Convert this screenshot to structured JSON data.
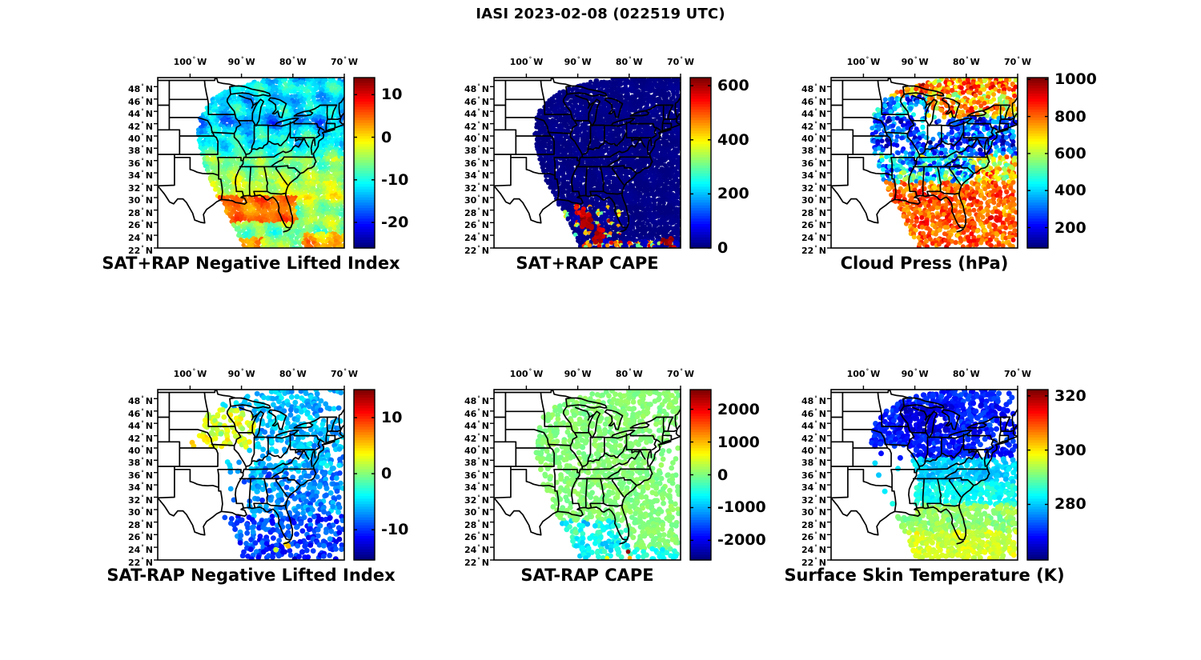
{
  "figure_title": "IASI 2023-02-08 (022519 UTC)",
  "colors": {
    "background": "#ffffff",
    "text": "#000000",
    "map_outline": "#000000",
    "colormap_low": "#00008f",
    "colormap_high": "#7f0000"
  },
  "map_axes": {
    "degree_symbol": "°",
    "lon_ticks": [
      {
        "label": "100",
        "hemisphere": "W"
      },
      {
        "label": "90",
        "hemisphere": "W"
      },
      {
        "label": "80",
        "hemisphere": "W"
      },
      {
        "label": "70",
        "hemisphere": "W"
      }
    ],
    "lat_ticks": [
      {
        "label": "48",
        "hemisphere": "N"
      },
      {
        "label": "46",
        "hemisphere": "N"
      },
      {
        "label": "44",
        "hemisphere": "N"
      },
      {
        "label": "42",
        "hemisphere": "N"
      },
      {
        "label": "40",
        "hemisphere": "N"
      },
      {
        "label": "38",
        "hemisphere": "N"
      },
      {
        "label": "36",
        "hemisphere": "N"
      },
      {
        "label": "34",
        "hemisphere": "N"
      },
      {
        "label": "32",
        "hemisphere": "N"
      },
      {
        "label": "30",
        "hemisphere": "N"
      },
      {
        "label": "28",
        "hemisphere": "N"
      },
      {
        "label": "26",
        "hemisphere": "N"
      },
      {
        "label": "24",
        "hemisphere": "N"
      },
      {
        "label": "22",
        "hemisphere": "N"
      }
    ]
  },
  "swath_polygon_lonlat": [
    [
      -89.4,
      22
    ],
    [
      -92.5,
      27
    ],
    [
      -94.6,
      30
    ],
    [
      -96.3,
      33
    ],
    [
      -97.5,
      36
    ],
    [
      -98.3,
      39
    ],
    [
      -98.5,
      41
    ],
    [
      -98.0,
      43.5
    ],
    [
      -96.5,
      45.5
    ],
    [
      -93.5,
      47.2
    ],
    [
      -90.0,
      48.3
    ],
    [
      -86.0,
      49.1
    ],
    [
      -82.0,
      49.45
    ],
    [
      -70.0,
      49.45
    ],
    [
      -70.0,
      22
    ]
  ],
  "chart_data": [
    {
      "id": "sat-plus-rap-nli",
      "title": "SAT+RAP Negative Lifted Index",
      "type": "map-filled-swath",
      "colormap": "jet",
      "colorbar": {
        "vmin": -26,
        "vmax": 14,
        "ticks": [
          10,
          0,
          -10,
          -20
        ]
      },
      "lon_ticks_deg": [
        -100,
        -90,
        -80,
        -70
      ],
      "lat_ticks_deg": [
        48,
        46,
        44,
        42,
        40,
        38,
        36,
        34,
        32,
        30,
        28,
        26,
        24,
        22
      ],
      "lon_range": [
        -106.3,
        -70
      ],
      "lat_range": [
        22,
        49.45
      ],
      "render": {
        "mode": "fill",
        "step": 3,
        "dot_r": 2.7,
        "coverage": 1,
        "seed": 11
      },
      "data_regions": [
        {
          "lat": [
            26,
            30.2
          ],
          "lon": [
            -94.5,
            -79.3
          ],
          "mean": 4.5,
          "sd": 2.2
        },
        {
          "lat": [
            22,
            24.3
          ],
          "lon": [
            -78,
            -70
          ],
          "mean": 1.5,
          "sd": 2.8
        },
        {
          "lat": [
            22,
            23.6
          ],
          "lon": [
            -94,
            -86
          ],
          "mean": 3,
          "sd": 2.5
        },
        {
          "lat": [
            22,
            26
          ],
          "mean": -6,
          "sd": 3.2
        },
        {
          "lat": [
            26,
            29.5
          ],
          "mean": -5,
          "sd": 2.8
        },
        {
          "lat": [
            29.5,
            32.5
          ],
          "mean": -2.5,
          "sd": 2.6
        },
        {
          "lat": [
            32.5,
            36.5
          ],
          "mean": -5.5,
          "sd": 2.8
        },
        {
          "lat": [
            36.5,
            40
          ],
          "mean": -10,
          "sd": 3.2
        },
        {
          "lat": [
            40,
            44.5
          ],
          "mean": -13.5,
          "sd": 3.8
        },
        {
          "lat": [
            44.5,
            50
          ],
          "mean": -12,
          "sd": 3.2
        },
        {
          "mean": -8,
          "sd": 3
        }
      ],
      "extra_points": [],
      "gaps": [],
      "description": "Filled retrieval swath: cyan/blue (-10 to -20) over Midwest, Great Lakes and Northeast; green-yellow (-5 to 0) across the South; orange (+2 to +7) over the Gulf of Mexico coast and far bottom-right streaks; cyan near 22N."
    },
    {
      "id": "sat-plus-rap-cape",
      "title": "SAT+RAP CAPE",
      "type": "map-filled-swath",
      "colormap": "jet",
      "colorbar": {
        "vmin": 0,
        "vmax": 630,
        "ticks": [
          600,
          400,
          200,
          0
        ]
      },
      "lon_ticks_deg": [
        -100,
        -90,
        -80,
        -70
      ],
      "lat_ticks_deg": [
        48,
        46,
        44,
        42,
        40,
        38,
        36,
        34,
        32,
        30,
        28,
        26,
        24,
        22
      ],
      "lon_range": [
        -106.3,
        -70
      ],
      "lat_range": [
        22,
        49.45
      ],
      "render": {
        "mode": "fill",
        "step": 3,
        "dot_r": 2.7,
        "coverage": 1,
        "seed": 22
      },
      "data_regions": [
        {
          "lat": [
            23.2,
            28.6
          ],
          "lon": [
            -92.5,
            -81.5
          ],
          "mean": 12,
          "sd": 18,
          "hi_mean": 430,
          "hi_sd": 190,
          "hi_prob": 0.36
        },
        {
          "lat": [
            22,
            23.2
          ],
          "lon": [
            -89,
            -70
          ],
          "mean": 20,
          "sd": 25,
          "hi_mean": 430,
          "hi_sd": 190,
          "hi_prob": 0.45
        },
        {
          "mean": 5,
          "sd": 6
        }
      ],
      "extra_points": [
        {
          "lon": -88.3,
          "lat": 26.2,
          "v": 600,
          "r": 3.2,
          "n": 24,
          "spread": 1.1
        },
        {
          "lon": -89.6,
          "lat": 27.9,
          "v": 560,
          "r": 3,
          "n": 10,
          "spread": 0.8
        },
        {
          "lon": -85.9,
          "lat": 23.9,
          "v": 590,
          "r": 3.2,
          "n": 14,
          "spread": 1.0
        },
        {
          "lon": -72.3,
          "lat": 22.6,
          "v": 600,
          "r": 3,
          "n": 10,
          "spread": 1.2
        }
      ],
      "gaps": [],
      "description": "Swath almost entirely ~0 J/kg (dark blue); strong CAPE cells (400-630, red/dark-red with yellow-cyan fringes) over the southern Gulf of Mexico near 22-28N and along the bottom edge toward the right corner."
    },
    {
      "id": "cloud-press",
      "title": "Cloud Press (hPa)",
      "type": "map-scatter",
      "units": "hPa",
      "colormap": "jet",
      "colorbar": {
        "vmin": 90,
        "vmax": 1010,
        "ticks": [
          1000,
          800,
          600,
          400,
          200
        ]
      },
      "lon_ticks_deg": [
        -100,
        -90,
        -80,
        -70
      ],
      "lat_ticks_deg": [
        48,
        46,
        44,
        42,
        40,
        38,
        36,
        34,
        32,
        30,
        28,
        26,
        24,
        22
      ],
      "lon_range": [
        -106.3,
        -70
      ],
      "lat_range": [
        22,
        49.45
      ],
      "render": {
        "mode": "dots",
        "step": 4,
        "dot_r": 3.0,
        "coverage": 0.85,
        "seed": 33
      },
      "data_regions": [
        {
          "lat": [
            22,
            32.5
          ],
          "mean": 810,
          "sd": 85
        },
        {
          "lat": [
            32.5,
            36.8
          ],
          "lon": [
            -78.5,
            -70
          ],
          "mean": 690,
          "sd": 170
        },
        {
          "lat": [
            32.5,
            36.8
          ],
          "mean": 380,
          "sd": 210
        },
        {
          "lat": [
            36.8,
            43
          ],
          "mean": 280,
          "sd": 150
        },
        {
          "lat": [
            46.5,
            49.5
          ],
          "mean": 750,
          "sd": 160
        },
        {
          "lat": [
            43,
            46.5
          ],
          "lon": [
            -87.5,
            -70
          ],
          "mean": 730,
          "sd": 180
        },
        {
          "lat": [
            43,
            46.5
          ],
          "mean": 330,
          "sd": 150
        },
        {
          "mean": 500,
          "sd": 200
        }
      ],
      "extra_points": [],
      "gaps": [
        {
          "lon": [
            -90.5,
            -86
          ],
          "lat": [
            41.5,
            44.5
          ],
          "keep": 0.25
        },
        {
          "lon": [
            -89,
            -85.5
          ],
          "lat": [
            38.5,
            41
          ],
          "keep": 0.35
        },
        {
          "lon": [
            -87,
            -83.5
          ],
          "lat": [
            40.5,
            43.5
          ],
          "keep": 0.3
        },
        {
          "lon": [
            -96,
            -91
          ],
          "lat": [
            36.5,
            39.5
          ],
          "keep": 0.45
        }
      ],
      "description": "Scattered cloud-top pressure dots: high pressure 700-900 hPa (orange) south of ~32N and over the Northeast/Ontario; low 200-400 hPa (blue) band over the Midwest and Ohio valley; mixed cyan/orange 400-700 in between with cloud-free white holes."
    },
    {
      "id": "sat-minus-rap-nli",
      "title": "SAT-RAP Negative Lifted Index",
      "type": "map-scatter",
      "colormap": "jet",
      "colorbar": {
        "vmin": -15.4,
        "vmax": 15,
        "ticks": [
          10,
          0,
          -10
        ]
      },
      "lon_ticks_deg": [
        -100,
        -90,
        -80,
        -70
      ],
      "lat_ticks_deg": [
        48,
        46,
        44,
        42,
        40,
        38,
        36,
        34,
        32,
        30,
        28,
        26,
        24,
        22
      ],
      "lon_range": [
        -106.3,
        -70
      ],
      "lat_range": [
        22,
        49.45
      ],
      "render": {
        "mode": "dots",
        "step": 4,
        "dot_r": 3.4,
        "coverage": 0.5,
        "seed": 44
      },
      "data_regions": [
        {
          "lat": [
            40,
            46.3
          ],
          "lon": [
            -101,
            -87.5
          ],
          "mean": 2.5,
          "sd": 2.2
        },
        {
          "lat": [
            41,
            48.8
          ],
          "lon": [
            -87.5,
            -70
          ],
          "mean": -6,
          "sd": 2.0
        },
        {
          "lat": [
            36,
            41
          ],
          "mean": -6.5,
          "sd": 2.4
        },
        {
          "lat": [
            29,
            36
          ],
          "mean": -7.5,
          "sd": 2.4
        },
        {
          "lat": [
            24,
            29
          ],
          "mean": -9.5,
          "sd": 2.6
        },
        {
          "lat": [
            22,
            24
          ],
          "mean": -11,
          "sd": 2.4
        },
        {
          "mean": -6,
          "sd": 2
        }
      ],
      "extra_points": [
        {
          "lon": -81.3,
          "lat": 24.5,
          "v": 4,
          "r": 3.4
        },
        {
          "lon": -80.9,
          "lat": 24.2,
          "v": 6,
          "r": 3.4
        },
        {
          "lon": -83.3,
          "lat": 23.6,
          "v": 2,
          "r": 3.4
        },
        {
          "lon": -99.6,
          "lat": 40.9,
          "v": 6,
          "r": 3.4
        },
        {
          "lon": -99.3,
          "lat": 40.3,
          "v": 5,
          "r": 3.4
        }
      ],
      "gaps": [
        {
          "lon": [
            -99,
            -88.5
          ],
          "lat": [
            29,
            40
          ],
          "keep": 0.07
        },
        {
          "lon": [
            -88.5,
            -82
          ],
          "lat": [
            37.5,
            40.5
          ],
          "keep": 0.35
        },
        {
          "lon": [
            -75,
            -70
          ],
          "lat": [
            44.5,
            49.5
          ],
          "keep": 0.3
        }
      ],
      "description": "Difference dots: yellow-green cluster (+1 to +5) over Nebraska/Iowa/Minnesota/Wisconsin; cyan (-4 to -8) over the Great Lakes, Northeast and Southeast; deeper blue (-8 to -13) over Florida and the Gulf with a few orange specks near the Florida Keys."
    },
    {
      "id": "sat-minus-rap-cape",
      "title": "SAT-RAP CAPE",
      "type": "map-scatter",
      "colormap": "jet",
      "colorbar": {
        "vmin": -2600,
        "vmax": 2600,
        "ticks": [
          2000,
          1000,
          0,
          -1000,
          -2000
        ]
      },
      "lon_ticks_deg": [
        -100,
        -90,
        -80,
        -70
      ],
      "lat_ticks_deg": [
        48,
        46,
        44,
        42,
        40,
        38,
        36,
        34,
        32,
        30,
        28,
        26,
        24,
        22
      ],
      "lon_range": [
        -106.3,
        -70
      ],
      "lat_range": [
        22,
        49.45
      ],
      "render": {
        "mode": "dots",
        "step": 4,
        "dot_r": 3.4,
        "coverage": 0.55,
        "seed": 55
      },
      "data_regions": [
        {
          "lat": [
            22,
            28.2
          ],
          "lon": [
            -93.5,
            -80.3
          ],
          "mean": -620,
          "sd": 340
        },
        {
          "lat": [
            22,
            23.8
          ],
          "lon": [
            -80.3,
            -70
          ],
          "mean": -520,
          "sd": 300
        },
        {
          "mean": 40,
          "sd": 110
        }
      ],
      "extra_points": [
        {
          "lon": -80.2,
          "lat": 23.3,
          "v": 2300,
          "r": 2.8
        },
        {
          "lon": -79.9,
          "lat": 22.3,
          "v": 1050,
          "r": 2.8
        },
        {
          "lon": -84.3,
          "lat": 22.3,
          "v": 800,
          "r": 2.8
        }
      ],
      "gaps": [
        {
          "lon": [
            -76,
            -70
          ],
          "lat": [
            36,
            44
          ],
          "keep": 0.3
        }
      ],
      "description": "Difference dots near 0 J/kg (light green) over most of the swath; negative differences (-400 to -1100, cyan) over the southern Gulf of Mexico 22-28N; one red outlier (~+2300) and a yellow dot near 23N/80W."
    },
    {
      "id": "surface-skin-temperature",
      "title": "Surface Skin Temperature (K)",
      "type": "map-scatter",
      "units": "K",
      "colormap": "jet",
      "colorbar": {
        "vmin": 259.5,
        "vmax": 322.3,
        "ticks": [
          320,
          300,
          280
        ]
      },
      "lon_ticks_deg": [
        -100,
        -90,
        -80,
        -70
      ],
      "lat_ticks_deg": [
        48,
        46,
        44,
        42,
        40,
        38,
        36,
        34,
        32,
        30,
        28,
        26,
        24,
        22
      ],
      "lon_range": [
        -106.3,
        -70
      ],
      "lat_range": [
        22,
        49.45
      ],
      "render": {
        "mode": "dots",
        "step": 4,
        "dot_r": 3.5,
        "coverage": 0.8,
        "seed": 66
      },
      "data_regions": [
        {
          "lat": [
            42.5,
            46.8
          ],
          "lon": [
            -93,
            -83.5
          ],
          "mean": 265,
          "sd": 2.6
        },
        {
          "lat": [
            38.3,
            49.5
          ],
          "mean": 269,
          "sd": 3.2
        },
        {
          "lat": [
            34.3,
            38.3
          ],
          "mean": 280,
          "sd": 2.4
        },
        {
          "lat": [
            30.8,
            34.3
          ],
          "mean": 284,
          "sd": 2.4
        },
        {
          "lat": [
            26.5,
            30.8
          ],
          "mean": 292,
          "sd": 2.4
        },
        {
          "lat": [
            22,
            26.5
          ],
          "mean": 296,
          "sd": 2.6
        },
        {
          "mean": 281,
          "sd": 3
        }
      ],
      "extra_points": [],
      "gaps": [
        {
          "lon": [
            -100,
            -90
          ],
          "lat": [
            31,
            40.3
          ],
          "keep": 0.05
        },
        {
          "lon": [
            -95.5,
            -89.5
          ],
          "lat": [
            28.5,
            31
          ],
          "keep": 0.25
        },
        {
          "lon": [
            -74,
            -70
          ],
          "lat": [
            44,
            49.5
          ],
          "keep": 0.35
        },
        {
          "lon": [
            -78,
            -70
          ],
          "lat": [
            37.5,
            43.5
          ],
          "keep": 0.55
        }
      ],
      "description": "Skin temperature dots: deep blue 262-272 K over the upper Midwest, Great Lakes and Northeast; cyan 276-284 K across the mid-South and Southeast; green-yellow 290-300 K over the Gulf of Mexico, Florida and far south; large no-retrieval gap over the southern Plains."
    }
  ]
}
